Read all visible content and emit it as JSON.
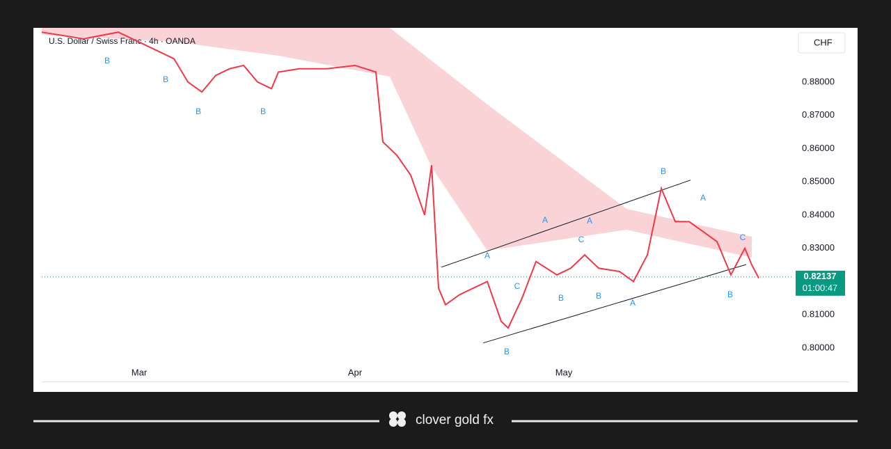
{
  "chart_data": {
    "type": "line",
    "title": "U.S. Dollar / Swiss Franc · 4h · OANDA",
    "currency": "CHF",
    "color": "#f23645",
    "x": [
      -14,
      -8,
      -3,
      2,
      5,
      7,
      9,
      11,
      13,
      15,
      17,
      19,
      20,
      23,
      27,
      31,
      34,
      35,
      37,
      39,
      41,
      42,
      43,
      44,
      46,
      48,
      50,
      52,
      53,
      55,
      57,
      60,
      62,
      64,
      66,
      69,
      71,
      73,
      75,
      77,
      79,
      81,
      83,
      85,
      87,
      88,
      89
    ],
    "values": [
      0.895,
      0.893,
      0.895,
      0.89,
      0.887,
      0.88,
      0.877,
      0.882,
      0.884,
      0.885,
      0.88,
      0.878,
      0.883,
      0.884,
      0.884,
      0.885,
      0.883,
      0.862,
      0.858,
      0.852,
      0.84,
      0.855,
      0.818,
      0.813,
      0.816,
      0.818,
      0.82,
      0.808,
      0.806,
      0.815,
      0.826,
      0.822,
      0.824,
      0.828,
      0.824,
      0.823,
      0.82,
      0.828,
      0.848,
      0.838,
      0.838,
      0.835,
      0.832,
      0.822,
      0.83,
      0.825,
      0.821
    ],
    "xlim": [
      -14,
      94
    ],
    "xticks": [
      {
        "value": 0,
        "label": "Mar"
      },
      {
        "value": 31,
        "label": "Apr"
      },
      {
        "value": 61,
        "label": "May"
      }
    ],
    "ylim": [
      0.7895,
      0.8963
    ],
    "yticks": [
      {
        "value": 0.8,
        "label": "0.80000"
      },
      {
        "value": 0.81,
        "label": "0.81000"
      },
      {
        "value": 0.82,
        "label": "0.82000"
      },
      {
        "value": 0.83,
        "label": "0.83000"
      },
      {
        "value": 0.84,
        "label": "0.84000"
      },
      {
        "value": 0.85,
        "label": "0.85000"
      },
      {
        "value": 0.86,
        "label": "0.86000"
      },
      {
        "value": 0.87,
        "label": "0.87000"
      },
      {
        "value": 0.88,
        "label": "0.88000"
      }
    ],
    "last_price": {
      "value": 0.82137,
      "label": "0.82137"
    },
    "countdown": "01:00:47",
    "trendlines": [
      {
        "x": [
          43.4,
          79.2
        ],
        "y": [
          0.8243,
          0.8505
        ]
      },
      {
        "x": [
          49.4,
          87.2
        ],
        "y": [
          0.8015,
          0.8251
        ]
      }
    ],
    "annotations": [
      {
        "text": "B",
        "x": -4.6,
        "y": 0.8863
      },
      {
        "text": "B",
        "x": 3.8,
        "y": 0.8806
      },
      {
        "text": "B",
        "x": 8.5,
        "y": 0.871
      },
      {
        "text": "B",
        "x": 17.8,
        "y": 0.871
      },
      {
        "text": "A",
        "x": 50,
        "y": 0.8276
      },
      {
        "text": "C",
        "x": 54.3,
        "y": 0.8184
      },
      {
        "text": "B",
        "x": 52.8,
        "y": 0.7987
      },
      {
        "text": "A",
        "x": 58.3,
        "y": 0.8383
      },
      {
        "text": "B",
        "x": 60.6,
        "y": 0.8149
      },
      {
        "text": "A",
        "x": 64.7,
        "y": 0.8381
      },
      {
        "text": "C",
        "x": 63.5,
        "y": 0.8325
      },
      {
        "text": "B",
        "x": 66,
        "y": 0.8155
      },
      {
        "text": "A",
        "x": 70.9,
        "y": 0.8134
      },
      {
        "text": "B",
        "x": 75.3,
        "y": 0.853
      },
      {
        "text": "A",
        "x": 81,
        "y": 0.845
      },
      {
        "text": "B",
        "x": 84.9,
        "y": 0.8159
      },
      {
        "text": "C",
        "x": 86.7,
        "y": 0.8331
      }
    ]
  },
  "brand": "clover gold fx"
}
